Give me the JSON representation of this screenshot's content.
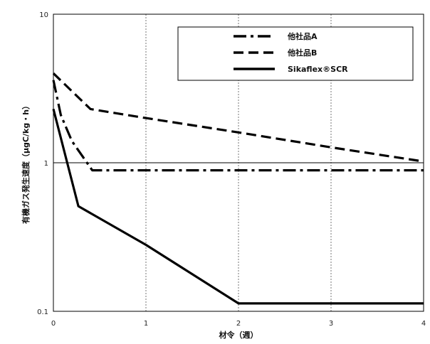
{
  "chart_data": {
    "type": "line",
    "title": "",
    "xlabel": "材令（週）",
    "ylabel": "有機ガス発生速度（μgC/kg・h）",
    "xlim": [
      0,
      4
    ],
    "ylim": [
      0.1,
      10
    ],
    "y_scale": "log",
    "x_ticks": [
      "0",
      "1",
      "2",
      "3",
      "4"
    ],
    "y_ticks": [
      "0.1",
      "1",
      "10"
    ],
    "grid": "vertical dotted at x=1,2,3; solid horizontal at y=1",
    "legend_position": "top-right",
    "series": [
      {
        "name": "他社品A",
        "line_style": "dash-dot",
        "points": [
          [
            0,
            3.6
          ],
          [
            0.08,
            2.1
          ],
          [
            0.2,
            1.4
          ],
          [
            0.42,
            0.89
          ],
          [
            1,
            0.89
          ],
          [
            2,
            0.89
          ],
          [
            3,
            0.89
          ],
          [
            4,
            0.89
          ]
        ]
      },
      {
        "name": "他社品B",
        "line_style": "dashed",
        "points": [
          [
            0,
            4.0
          ],
          [
            0.4,
            2.3
          ],
          [
            1,
            2.0
          ],
          [
            2,
            1.6
          ],
          [
            3,
            1.27
          ],
          [
            4,
            1.02
          ]
        ]
      },
      {
        "name": "Sikaflex®SCR",
        "line_style": "solid",
        "points": [
          [
            0,
            2.3
          ],
          [
            0.27,
            0.51
          ],
          [
            1,
            0.28
          ],
          [
            2,
            0.113
          ],
          [
            3,
            0.113
          ],
          [
            4,
            0.113
          ]
        ]
      }
    ]
  }
}
